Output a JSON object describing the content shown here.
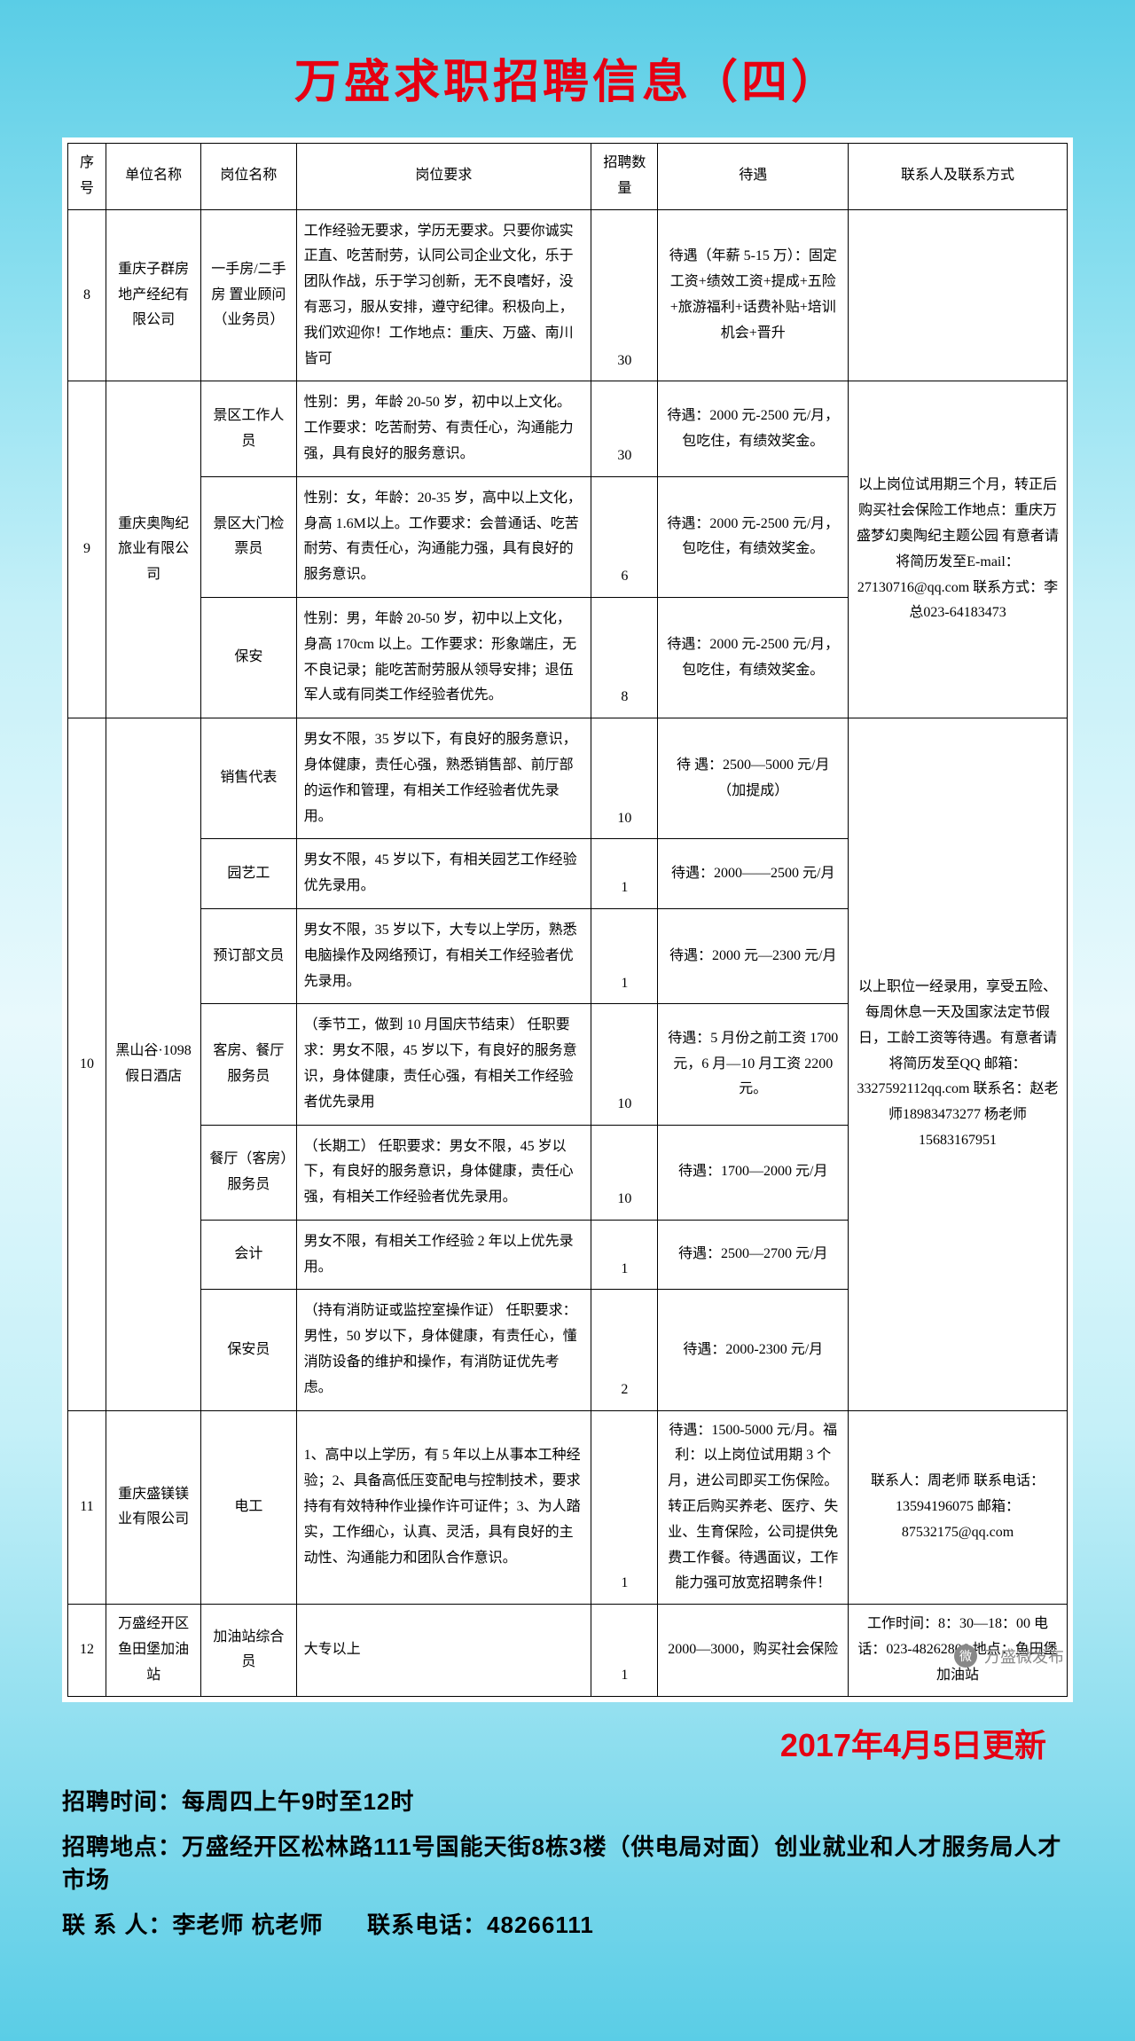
{
  "title": "万盛求职招聘信息（四）",
  "update_date": "2017年4月5日更新",
  "headers": {
    "seq": "序号",
    "company": "单位名称",
    "position": "岗位名称",
    "requirement": "岗位要求",
    "count": "招聘数量",
    "salary": "待遇",
    "contact": "联系人及联系方式"
  },
  "rows": [
    {
      "seq": "8",
      "company": "重庆子群房地产经纪有限公司",
      "position": "一手房/二手房 置业顾问（业务员）",
      "requirement": "工作经验无要求，学历无要求。只要你诚实正直、吃苦耐劳，认同公司企业文化，乐于团队作战，乐于学习创新，无不良嗜好，没有恶习，服从安排，遵守纪律。积极向上，我们欢迎你！工作地点：重庆、万盛、南川皆可",
      "count": "30",
      "salary": "待遇（年薪 5-15 万）：固定工资+绩效工资+提成+五险+旅游福利+话费补贴+培训机会+晋升",
      "contact": ""
    },
    {
      "seq": "9",
      "company": "重庆奥陶纪旅业有限公司",
      "contact": "以上岗位试用期三个月，转正后购买社会保险工作地点：重庆万盛梦幻奥陶纪主题公园 有意者请将简历发至E-mail：27130716@qq.com 联系方式：李总023-64183473",
      "sub": [
        {
          "position": "景区工作人员",
          "requirement": "性别：男，年龄 20-50 岁，初中以上文化。工作要求：吃苦耐劳、有责任心，沟通能力强，具有良好的服务意识。",
          "count": "30",
          "salary": "待遇：2000 元-2500 元/月，包吃住，有绩效奖金。"
        },
        {
          "position": "景区大门检票员",
          "requirement": "性别：女，年龄：20-35 岁，高中以上文化，身高 1.6M以上。工作要求：会普通话、吃苦耐劳、有责任心，沟通能力强，具有良好的服务意识。",
          "count": "6",
          "salary": "待遇：2000 元-2500 元/月，包吃住，有绩效奖金。"
        },
        {
          "position": "保安",
          "requirement": "性别：男，年龄 20-50 岁，初中以上文化，身高 170cm 以上。工作要求：形象端庄，无不良记录；能吃苦耐劳服从领导安排；退伍军人或有同类工作经验者优先。",
          "count": "8",
          "salary": "待遇：2000 元-2500 元/月，包吃住，有绩效奖金。"
        }
      ]
    },
    {
      "seq": "10",
      "company": "黑山谷·1098 假日酒店",
      "contact": "以上职位一经录用，享受五险、每周休息一天及国家法定节假日，工龄工资等待遇。有意者请将简历发至QQ 邮箱：3327592112qq.com 联系名：赵老师18983473277 杨老师15683167951",
      "sub": [
        {
          "position": "销售代表",
          "requirement": "男女不限，35 岁以下，有良好的服务意识，身体健康，责任心强，熟悉销售部、前厅部的运作和管理，有相关工作经验者优先录用。",
          "count": "10",
          "salary": "待  遇：2500—5000 元/月（加提成）"
        },
        {
          "position": "园艺工",
          "requirement": "男女不限，45 岁以下，有相关园艺工作经验优先录用。",
          "count": "1",
          "salary": "待遇：2000——2500 元/月"
        },
        {
          "position": "预订部文员",
          "requirement": "男女不限，35 岁以下，大专以上学历，熟悉电脑操作及网络预订，有相关工作经验者优先录用。",
          "count": "1",
          "salary": "待遇：2000 元—2300 元/月"
        },
        {
          "position": "客房、餐厅服务员",
          "requirement": "（季节工，做到 10 月国庆节结束） 任职要求：男女不限，45 岁以下，有良好的服务意识，身体健康，责任心强，有相关工作经验者优先录用",
          "count": "10",
          "salary": "待遇：5 月份之前工资 1700 元，6 月—10 月工资 2200 元。"
        },
        {
          "position": "餐厅（客房）服务员",
          "requirement": "（长期工） 任职要求：男女不限，45 岁以下，有良好的服务意识，身体健康，责任心强，有相关工作经验者优先录用。",
          "count": "10",
          "salary": "待遇：1700—2000 元/月"
        },
        {
          "position": "会计",
          "requirement": "男女不限，有相关工作经验 2 年以上优先录用。",
          "count": "1",
          "salary": "待遇：2500—2700 元/月"
        },
        {
          "position": "保安员",
          "requirement": "（持有消防证或监控室操作证） 任职要求：男性，50 岁以下，身体健康，有责任心，懂消防设备的维护和操作，有消防证优先考虑。",
          "count": "2",
          "salary": "待遇：2000-2300 元/月"
        }
      ]
    },
    {
      "seq": "11",
      "company": "重庆盛镁镁业有限公司",
      "position": "电工",
      "requirement": "1、高中以上学历，有 5 年以上从事本工种经验；2、具备高低压变配电与控制技术，要求持有有效特种作业操作许可证件；3、为人踏实，工作细心，认真、灵活，具有良好的主动性、沟通能力和团队合作意识。",
      "count": "1",
      "salary": "待遇：1500-5000 元/月。福利：以上岗位试用期 3 个月，进公司即买工伤保险。转正后购买养老、医疗、失业、生育保险，公司提供免费工作餐。待遇面议，工作能力强可放宽招聘条件！",
      "contact": "联系人：周老师 联系电话：13594196075 邮箱：87532175@qq.com"
    },
    {
      "seq": "12",
      "company": "万盛经开区鱼田堡加油站",
      "position": "加油站综合员",
      "requirement": "大专以上",
      "count": "1",
      "salary": "2000—3000，购买社会保险",
      "contact": "工作时间：8：30—18：00 电话：023-48262806 地点：鱼田堡加油站"
    }
  ],
  "footer": {
    "time_label": "招聘时间：",
    "time_value": "每周四上午9时至12时",
    "addr_label": "招聘地点：",
    "addr_value": "万盛经开区松林路111号国能天街8栋3楼（供电局对面）创业就业和人才服务局人才市场",
    "contact_label": "联 系 人：",
    "contact_value": "李老师 杭老师",
    "phone_label": "联系电话：",
    "phone_value": "48266111"
  },
  "wechat": "万盛微发布"
}
